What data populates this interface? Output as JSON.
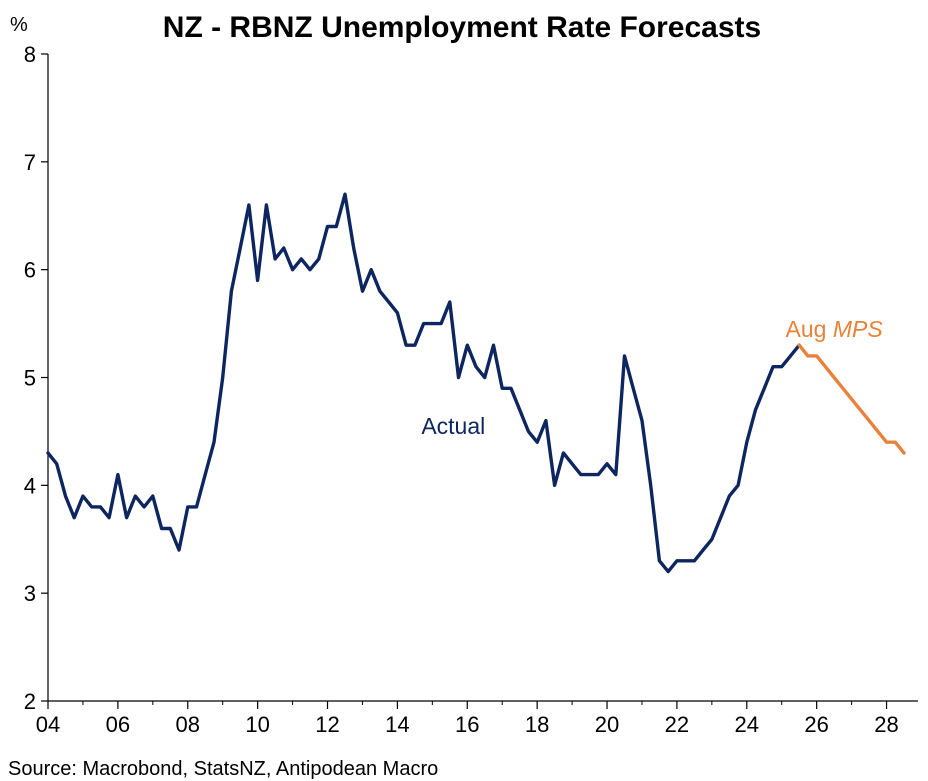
{
  "chart_data": {
    "type": "line",
    "title": "NZ - RBNZ Unemployment Rate Forecasts",
    "ylabel": "%",
    "xlabel": "",
    "ylim": [
      2,
      8
    ],
    "xlim": [
      2004,
      2028.9
    ],
    "yticks": [
      "2",
      "3",
      "4",
      "5",
      "6",
      "7",
      "8"
    ],
    "xticks": [
      "04",
      "06",
      "08",
      "10",
      "12",
      "14",
      "16",
      "18",
      "20",
      "22",
      "24",
      "26",
      "28"
    ],
    "grid": false,
    "legend": "none",
    "source": "Source: Macrobond, StatsNZ, Antipodean Macro",
    "series": [
      {
        "name": "Actual",
        "color": "#0d2660",
        "x": [
          2004.0,
          2004.25,
          2004.5,
          2004.75,
          2005.0,
          2005.25,
          2005.5,
          2005.75,
          2006.0,
          2006.25,
          2006.5,
          2006.75,
          2007.0,
          2007.25,
          2007.5,
          2007.75,
          2008.0,
          2008.25,
          2008.5,
          2008.75,
          2009.0,
          2009.25,
          2009.5,
          2009.75,
          2010.0,
          2010.25,
          2010.5,
          2010.75,
          2011.0,
          2011.25,
          2011.5,
          2011.75,
          2012.0,
          2012.25,
          2012.5,
          2012.75,
          2013.0,
          2013.25,
          2013.5,
          2013.75,
          2014.0,
          2014.25,
          2014.5,
          2014.75,
          2015.0,
          2015.25,
          2015.5,
          2015.75,
          2016.0,
          2016.25,
          2016.5,
          2016.75,
          2017.0,
          2017.25,
          2017.5,
          2017.75,
          2018.0,
          2018.25,
          2018.5,
          2018.75,
          2019.0,
          2019.25,
          2019.5,
          2019.75,
          2020.0,
          2020.25,
          2020.5,
          2020.75,
          2021.0,
          2021.25,
          2021.5,
          2021.75,
          2022.0,
          2022.25,
          2022.5,
          2022.75,
          2023.0,
          2023.25,
          2023.5,
          2023.75,
          2024.0,
          2024.25,
          2024.5,
          2024.75,
          2025.0,
          2025.25,
          2025.5
        ],
        "values": [
          4.3,
          4.2,
          3.9,
          3.7,
          3.9,
          3.8,
          3.8,
          3.7,
          4.1,
          3.7,
          3.9,
          3.8,
          3.9,
          3.6,
          3.6,
          3.4,
          3.8,
          3.8,
          4.1,
          4.4,
          5.0,
          5.8,
          6.2,
          6.6,
          5.9,
          6.6,
          6.1,
          6.2,
          6.0,
          6.1,
          6.0,
          6.1,
          6.4,
          6.4,
          6.7,
          6.2,
          5.8,
          6.0,
          5.8,
          5.7,
          5.6,
          5.3,
          5.3,
          5.5,
          5.5,
          5.5,
          5.7,
          5.0,
          5.3,
          5.1,
          5.0,
          5.3,
          4.9,
          4.9,
          4.7,
          4.5,
          4.4,
          4.6,
          4.0,
          4.3,
          4.2,
          4.1,
          4.1,
          4.1,
          4.2,
          4.1,
          5.2,
          4.9,
          4.6,
          4.0,
          3.3,
          3.2,
          3.3,
          3.3,
          3.3,
          3.4,
          3.5,
          3.7,
          3.9,
          4.0,
          4.4,
          4.7,
          4.9,
          5.1,
          5.1,
          5.2,
          5.3
        ]
      },
      {
        "name": "Aug MPS",
        "color": "#e8823a",
        "x": [
          2025.5,
          2025.75,
          2026.0,
          2026.25,
          2026.5,
          2026.75,
          2027.0,
          2027.25,
          2027.5,
          2027.75,
          2028.0,
          2028.25,
          2028.5
        ],
        "values": [
          5.3,
          5.2,
          5.2,
          5.1,
          5.0,
          4.9,
          4.8,
          4.7,
          4.6,
          4.5,
          4.4,
          4.4,
          4.3
        ]
      }
    ],
    "annotations": [
      {
        "series": 0,
        "text": "Actual",
        "x": 2015.6,
        "y": 4.55
      },
      {
        "series": 1,
        "prefix": "Aug ",
        "text_italic": "MPS",
        "x": 2026.5,
        "y": 5.45
      }
    ]
  }
}
